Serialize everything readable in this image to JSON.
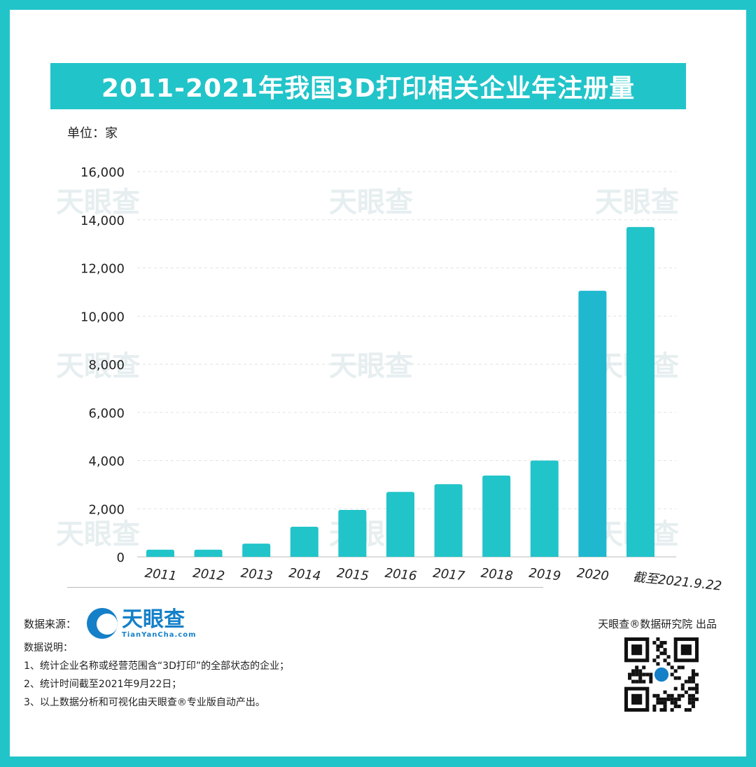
{
  "title": "2011-2021年我国3D打印相关企业年注册量",
  "unit": "单位：家",
  "chart_data": {
    "type": "bar",
    "categories": [
      "2011",
      "2012",
      "2013",
      "2014",
      "2015",
      "2016",
      "2017",
      "2018",
      "2019",
      "2020",
      "截至2021.9.22"
    ],
    "values": [
      300,
      300,
      550,
      1250,
      1950,
      2700,
      3020,
      3380,
      4000,
      11050,
      13700
    ],
    "ylim": [
      0,
      16000
    ],
    "yticks": [
      "0",
      "2,000",
      "4,000",
      "6,000",
      "8,000",
      "10,000",
      "12,000",
      "14,000",
      "16,000"
    ],
    "ytick_values": [
      0,
      2000,
      4000,
      6000,
      8000,
      10000,
      12000,
      14000,
      16000
    ],
    "grid": true,
    "bar_color": "#21c4c9",
    "highlight_color": "#1fb8cf"
  },
  "footer": {
    "source_label": "数据来源：",
    "logo_name": "天眼查",
    "logo_url": "TianYanCha.com",
    "notes_title": "数据说明：",
    "notes": [
      "1、统计企业名称或经营范围含“3D打印”的全部状态的企业；",
      "2、统计时间截至2021年9月22日；",
      "3、以上数据分析和可视化由天眼查®专业版自动产出。"
    ],
    "producer": "天眼查®数据研究院 出品",
    "qr_label": "天眼查"
  },
  "watermark": "天眼查"
}
